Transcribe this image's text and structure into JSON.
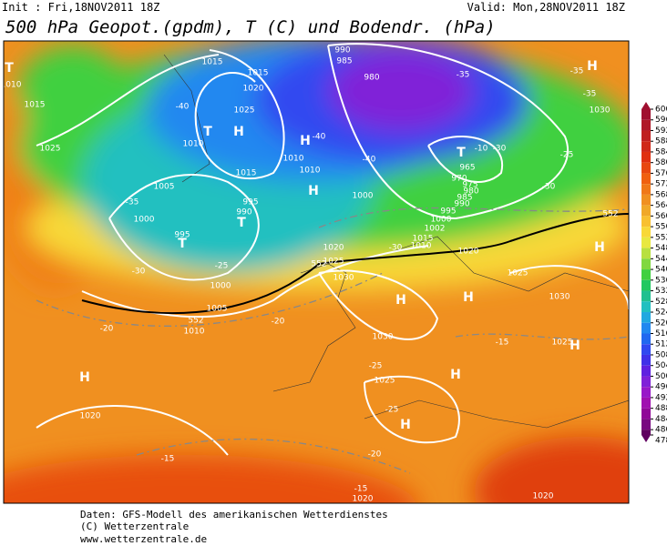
{
  "header": {
    "init": "Init : Fri,18NOV2011 18Z",
    "valid": "Valid: Mon,28NOV2011 18Z",
    "title": "500 hPa Geopot.(gpdm), T (C) und Bodendr. (hPa)"
  },
  "colorbar": {
    "ticks": [
      600,
      596,
      592,
      588,
      584,
      580,
      576,
      572,
      568,
      564,
      560,
      556,
      552,
      548,
      544,
      540,
      536,
      532,
      528,
      524,
      520,
      516,
      512,
      508,
      504,
      500,
      496,
      492,
      488,
      484,
      480,
      478
    ],
    "colors": [
      "#a01030",
      "#b01828",
      "#c02020",
      "#d02818",
      "#e03010",
      "#e84810",
      "#f06010",
      "#f07818",
      "#f09020",
      "#f0a828",
      "#f8c030",
      "#f8d838",
      "#e8e840",
      "#b8e040",
      "#80d840",
      "#40d040",
      "#20c860",
      "#20c090",
      "#20c0c0",
      "#20a8e0",
      "#2088f0",
      "#2068f0",
      "#3048f0",
      "#4030e8",
      "#6020e0",
      "#8020d8",
      "#9818c8",
      "#a010b0",
      "#900898",
      "#780880",
      "#600060"
    ]
  },
  "map_labels": [
    "T",
    "1010",
    "1015",
    "1025",
    "1015",
    "1015",
    "1020",
    "1025",
    "H",
    "T",
    "1010",
    "-40",
    "1015",
    "1010",
    "1010",
    "H",
    "-40",
    "H",
    "990",
    "985",
    "980",
    "-35",
    "-35",
    "H",
    "-35",
    "1030",
    "T",
    "965",
    "-10",
    "-30",
    "-25",
    "-30",
    "970",
    "975",
    "980",
    "985",
    "990",
    "995",
    "1000",
    "1000",
    "-40",
    "1005",
    "-35",
    "1000",
    "995",
    "T",
    "995",
    "990",
    "T",
    "-25",
    "-30",
    "1000",
    "1005",
    "1010",
    "-20",
    "-20",
    "1020",
    "1025",
    "1030",
    "1002",
    "1015",
    "1010",
    "-30",
    "1020",
    "H",
    "1025",
    "H",
    "H",
    "1030",
    "1030",
    "-15",
    "1025",
    "H",
    "-25",
    "H",
    "1025",
    "-25",
    "H",
    "H",
    "1020",
    "-20",
    "-15",
    "-15",
    "1020",
    "1020",
    "552",
    "552",
    "552"
  ],
  "footer": [
    "Daten: GFS-Modell des amerikanischen Wetterdienstes",
    "(C) Wetterzentrale",
    "www.wetterzentrale.de"
  ]
}
